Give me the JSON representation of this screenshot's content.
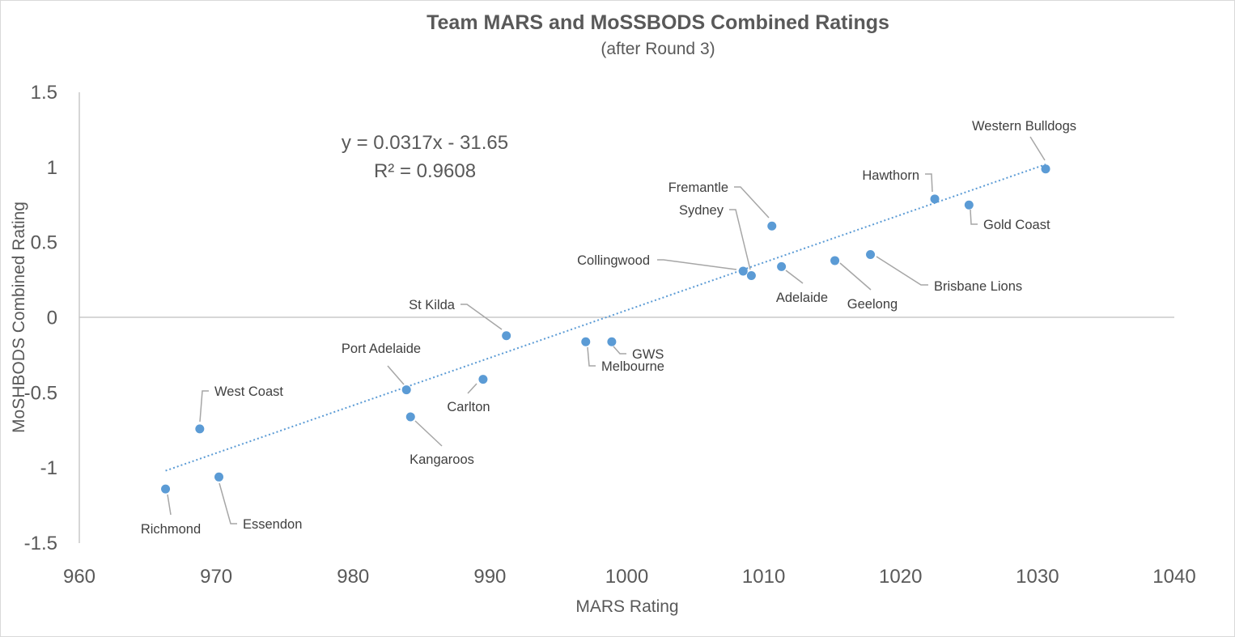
{
  "chart_data": {
    "type": "scatter",
    "title": "Team MARS and MoSSBODS Combined Ratings",
    "subtitle": "(after Round 3)",
    "xlabel": "MARS Rating",
    "ylabel": "MoSHBODS Combined Rating",
    "xlim": [
      960,
      1040
    ],
    "ylim": [
      -1.5,
      1.5
    ],
    "xticks": [
      "960",
      "970",
      "980",
      "990",
      "1000",
      "1010",
      "1020",
      "1030",
      "1040"
    ],
    "yticks": [
      "1.5",
      "1",
      "0.5",
      "0",
      "-0.5",
      "-1",
      "-1.5"
    ],
    "grid": false,
    "marker_color": "#5b9bd5",
    "trendline": {
      "type": "linear",
      "slope": 0.0317,
      "intercept": -31.65,
      "x_range": [
        966.3,
        1030.6
      ],
      "equation": "y = 0.0317x - 31.65",
      "r_squared": "R² = 0.9608",
      "color": "#5b9bd5"
    },
    "points": [
      {
        "name": "Western Bulldogs",
        "x": 1030.6,
        "y": 0.99
      },
      {
        "name": "Hawthorn",
        "x": 1022.5,
        "y": 0.79
      },
      {
        "name": "Gold Coast",
        "x": 1025.0,
        "y": 0.75
      },
      {
        "name": "Fremantle",
        "x": 1010.6,
        "y": 0.61
      },
      {
        "name": "Sydney",
        "x": 1009.1,
        "y": 0.28
      },
      {
        "name": "Collingwood",
        "x": 1008.5,
        "y": 0.31
      },
      {
        "name": "Adelaide",
        "x": 1011.3,
        "y": 0.34
      },
      {
        "name": "Geelong",
        "x": 1015.2,
        "y": 0.38
      },
      {
        "name": "Brisbane Lions",
        "x": 1017.8,
        "y": 0.42
      },
      {
        "name": "St Kilda",
        "x": 991.2,
        "y": -0.12
      },
      {
        "name": "Melbourne",
        "x": 997.0,
        "y": -0.16
      },
      {
        "name": "GWS",
        "x": 998.9,
        "y": -0.16
      },
      {
        "name": "Port Adelaide",
        "x": 983.9,
        "y": -0.48
      },
      {
        "name": "Carlton",
        "x": 989.5,
        "y": -0.41
      },
      {
        "name": "Kangaroos",
        "x": 984.2,
        "y": -0.66
      },
      {
        "name": "West Coast",
        "x": 968.8,
        "y": -0.74
      },
      {
        "name": "Richmond",
        "x": 966.3,
        "y": -1.14
      },
      {
        "name": "Essendon",
        "x": 970.2,
        "y": -1.06
      }
    ]
  }
}
